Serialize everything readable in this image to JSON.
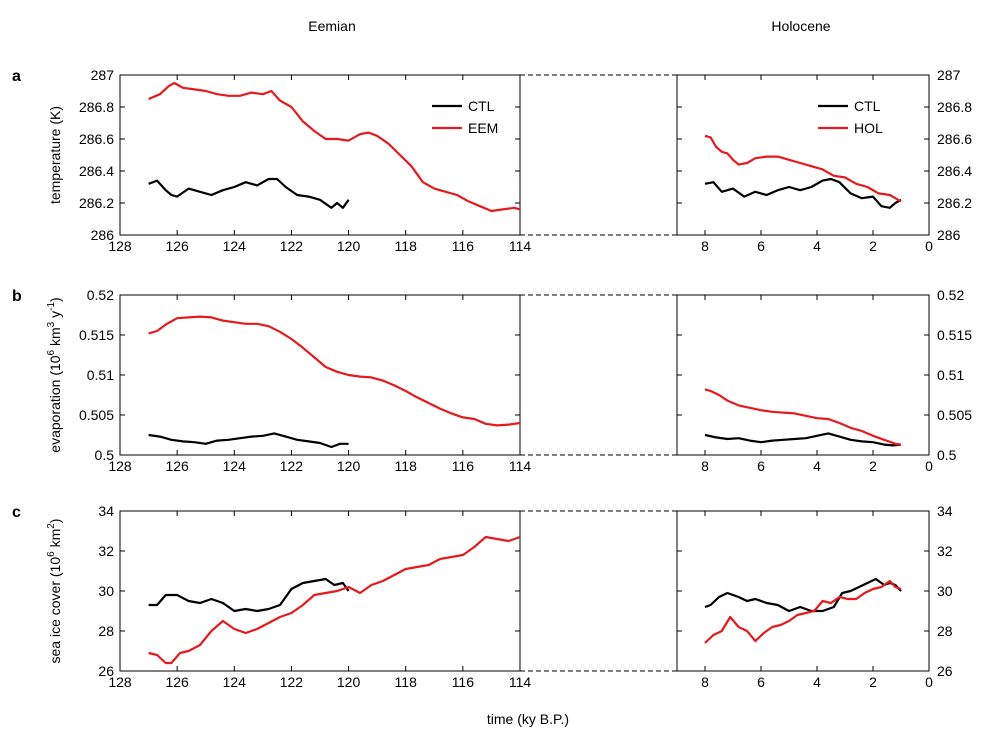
{
  "figure": {
    "period_left": "Eemian",
    "period_right": "Holocene",
    "xlabel": "time (ky B.P.)"
  },
  "chart_data": [
    {
      "type": "line",
      "panel_label": "a",
      "ylabel": "temperature (K)",
      "ylim": [
        286,
        287
      ],
      "yticks": [
        "286",
        "286.2",
        "286.4",
        "286.6",
        "286.8",
        "287"
      ],
      "eemian": {
        "xlim": [
          128,
          114
        ],
        "xticks": [
          "128",
          "126",
          "124",
          "122",
          "120",
          "118",
          "116",
          "114"
        ],
        "series": [
          {
            "name": "CTL",
            "color": "#000000",
            "x": [
              127,
              126.7,
              126.4,
              126.2,
              126,
              125.6,
              125.2,
              124.8,
              124.4,
              124,
              123.6,
              123.2,
              122.8,
              122.5,
              122.2,
              121.8,
              121.4,
              121,
              120.6,
              120.4,
              120.2,
              120
            ],
            "y": [
              286.32,
              286.34,
              286.28,
              286.25,
              286.24,
              286.29,
              286.27,
              286.25,
              286.28,
              286.3,
              286.33,
              286.31,
              286.35,
              286.35,
              286.3,
              286.25,
              286.24,
              286.22,
              286.17,
              286.2,
              286.17,
              286.22
            ]
          },
          {
            "name": "EEM",
            "color": "#e41a1c",
            "x": [
              127,
              126.6,
              126.3,
              126.1,
              125.8,
              125.4,
              125,
              124.6,
              124.2,
              123.8,
              123.4,
              123,
              122.7,
              122.4,
              122,
              121.6,
              121.2,
              120.8,
              120.4,
              120,
              119.6,
              119.3,
              119,
              118.6,
              118.2,
              117.8,
              117.4,
              117,
              116.6,
              116.2,
              115.8,
              115.4,
              115,
              114.6,
              114.2,
              114
            ],
            "y": [
              286.85,
              286.88,
              286.93,
              286.95,
              286.92,
              286.91,
              286.9,
              286.88,
              286.87,
              286.87,
              286.89,
              286.88,
              286.9,
              286.84,
              286.8,
              286.71,
              286.65,
              286.6,
              286.6,
              286.59,
              286.63,
              286.64,
              286.62,
              286.57,
              286.5,
              286.43,
              286.33,
              286.29,
              286.27,
              286.25,
              286.21,
              286.18,
              286.15,
              286.16,
              286.17,
              286.16
            ]
          }
        ]
      },
      "holocene": {
        "xlim": [
          9,
          0
        ],
        "xticks": [
          "8",
          "6",
          "4",
          "2",
          "0"
        ],
        "series": [
          {
            "name": "CTL",
            "color": "#000000",
            "x": [
              8,
              7.7,
              7.4,
              7,
              6.6,
              6.2,
              5.8,
              5.4,
              5,
              4.6,
              4.2,
              3.8,
              3.5,
              3.2,
              2.8,
              2.4,
              2,
              1.7,
              1.4,
              1.2,
              1
            ],
            "y": [
              286.32,
              286.33,
              286.27,
              286.29,
              286.24,
              286.27,
              286.25,
              286.28,
              286.3,
              286.28,
              286.3,
              286.34,
              286.35,
              286.33,
              286.26,
              286.23,
              286.24,
              286.18,
              286.17,
              286.2,
              286.22
            ]
          },
          {
            "name": "HOL",
            "color": "#e41a1c",
            "x": [
              8,
              7.8,
              7.6,
              7.4,
              7.2,
              7,
              6.8,
              6.5,
              6.2,
              5.8,
              5.4,
              5,
              4.6,
              4.2,
              3.8,
              3.4,
              3,
              2.6,
              2.2,
              1.8,
              1.4,
              1.2,
              1
            ],
            "y": [
              286.62,
              286.61,
              286.55,
              286.52,
              286.51,
              286.47,
              286.44,
              286.45,
              286.48,
              286.49,
              286.49,
              286.47,
              286.45,
              286.43,
              286.41,
              286.37,
              286.36,
              286.32,
              286.3,
              286.26,
              286.25,
              286.23,
              286.21
            ]
          }
        ]
      },
      "legend": {
        "placement": "top-center",
        "left": [
          "CTL",
          "EEM"
        ],
        "right": [
          "CTL",
          "HOL"
        ]
      }
    },
    {
      "type": "line",
      "panel_label": "b",
      "ylabel_parts": [
        "evaporation (10",
        "6",
        " km",
        "3",
        " y",
        "-1",
        ")"
      ],
      "ylim": [
        0.5,
        0.52
      ],
      "yticks": [
        "0.5",
        "0.505",
        "0.51",
        "0.515",
        "0.52"
      ],
      "eemian": {
        "xlim": [
          128,
          114
        ],
        "xticks": [
          "128",
          "126",
          "124",
          "122",
          "120",
          "118",
          "116",
          "114"
        ],
        "series": [
          {
            "name": "CTL",
            "color": "#000000",
            "x": [
              127,
              126.6,
              126.2,
              125.8,
              125.4,
              125,
              124.6,
              124.2,
              123.8,
              123.4,
              123,
              122.6,
              122.2,
              121.8,
              121.4,
              121,
              120.6,
              120.3,
              120
            ],
            "y": [
              0.5025,
              0.5023,
              0.5019,
              0.5017,
              0.5016,
              0.5014,
              0.5018,
              0.5019,
              0.5021,
              0.5023,
              0.5024,
              0.5027,
              0.5023,
              0.5019,
              0.5017,
              0.5015,
              0.501,
              0.5014,
              0.5014
            ]
          },
          {
            "name": "EEM",
            "color": "#e41a1c",
            "x": [
              127,
              126.7,
              126.4,
              126,
              125.6,
              125.2,
              124.8,
              124.4,
              124,
              123.6,
              123.2,
              122.8,
              122.4,
              122,
              121.6,
              121.2,
              120.8,
              120.4,
              120,
              119.6,
              119.2,
              118.8,
              118.4,
              118,
              117.6,
              117.2,
              116.8,
              116.4,
              116,
              115.6,
              115.2,
              114.8,
              114.4,
              114
            ],
            "y": [
              0.5152,
              0.5155,
              0.5163,
              0.5171,
              0.5172,
              0.5173,
              0.5172,
              0.5168,
              0.5166,
              0.5164,
              0.5164,
              0.5161,
              0.5154,
              0.5145,
              0.5134,
              0.5122,
              0.511,
              0.5104,
              0.51,
              0.5098,
              0.5097,
              0.5093,
              0.5087,
              0.508,
              0.5072,
              0.5065,
              0.5058,
              0.5052,
              0.5047,
              0.5045,
              0.5039,
              0.5037,
              0.5038,
              0.504
            ]
          }
        ]
      },
      "holocene": {
        "xlim": [
          9,
          0
        ],
        "xticks": [
          "8",
          "6",
          "4",
          "2",
          "0"
        ],
        "series": [
          {
            "name": "CTL",
            "color": "#000000",
            "x": [
              8,
              7.6,
              7.2,
              6.8,
              6.4,
              6,
              5.6,
              5.2,
              4.8,
              4.4,
              4,
              3.6,
              3.2,
              2.8,
              2.4,
              2,
              1.6,
              1.3,
              1
            ],
            "y": [
              0.5025,
              0.5022,
              0.502,
              0.5021,
              0.5018,
              0.5016,
              0.5018,
              0.5019,
              0.502,
              0.5021,
              0.5024,
              0.5027,
              0.5023,
              0.5019,
              0.5017,
              0.5016,
              0.5013,
              0.5012,
              0.5013
            ]
          },
          {
            "name": "HOL",
            "color": "#e41a1c",
            "x": [
              8,
              7.8,
              7.5,
              7.2,
              6.8,
              6.4,
              6,
              5.6,
              5.2,
              4.8,
              4.4,
              4,
              3.6,
              3.2,
              2.8,
              2.4,
              2,
              1.6,
              1.2,
              1
            ],
            "y": [
              0.5082,
              0.508,
              0.5075,
              0.5068,
              0.5062,
              0.5059,
              0.5056,
              0.5054,
              0.5053,
              0.5052,
              0.5049,
              0.5046,
              0.5045,
              0.504,
              0.5034,
              0.503,
              0.5024,
              0.5019,
              0.5014,
              0.5013
            ]
          }
        ]
      }
    },
    {
      "type": "line",
      "panel_label": "c",
      "ylabel_parts": [
        "sea ice cover (10",
        "6",
        " km",
        "2",
        ")"
      ],
      "ylim": [
        26,
        34
      ],
      "yticks": [
        "26",
        "28",
        "30",
        "32",
        "34"
      ],
      "eemian": {
        "xlim": [
          128,
          114
        ],
        "xticks": [
          "128",
          "126",
          "124",
          "122",
          "120",
          "118",
          "116",
          "114"
        ],
        "series": [
          {
            "name": "CTL",
            "color": "#000000",
            "x": [
              127,
              126.7,
              126.4,
              126,
              125.6,
              125.2,
              124.8,
              124.4,
              124,
              123.6,
              123.2,
              122.8,
              122.4,
              122,
              121.6,
              121.2,
              120.8,
              120.5,
              120.2,
              120
            ],
            "y": [
              29.3,
              29.3,
              29.8,
              29.8,
              29.5,
              29.4,
              29.6,
              29.4,
              29.0,
              29.1,
              29.0,
              29.1,
              29.3,
              30.1,
              30.4,
              30.5,
              30.6,
              30.3,
              30.4,
              30.0
            ]
          },
          {
            "name": "EEM",
            "color": "#e41a1c",
            "x": [
              127,
              126.7,
              126.4,
              126.2,
              125.9,
              125.6,
              125.2,
              124.8,
              124.4,
              124,
              123.6,
              123.2,
              122.8,
              122.4,
              122,
              121.6,
              121.2,
              120.8,
              120.4,
              120,
              119.6,
              119.2,
              118.8,
              118.4,
              118,
              117.6,
              117.2,
              116.8,
              116.4,
              116,
              115.6,
              115.2,
              114.8,
              114.4,
              114
            ],
            "y": [
              26.9,
              26.8,
              26.4,
              26.4,
              26.9,
              27.0,
              27.3,
              28.0,
              28.5,
              28.1,
              27.9,
              28.1,
              28.4,
              28.7,
              28.9,
              29.3,
              29.8,
              29.9,
              30.0,
              30.2,
              29.9,
              30.3,
              30.5,
              30.8,
              31.1,
              31.2,
              31.3,
              31.6,
              31.7,
              31.8,
              32.2,
              32.7,
              32.6,
              32.5,
              32.7
            ]
          }
        ]
      },
      "holocene": {
        "xlim": [
          9,
          0
        ],
        "xticks": [
          "8",
          "6",
          "4",
          "2",
          "0"
        ],
        "series": [
          {
            "name": "CTL",
            "color": "#000000",
            "x": [
              8,
              7.8,
              7.5,
              7.2,
              6.8,
              6.5,
              6.2,
              5.8,
              5.4,
              5,
              4.6,
              4.2,
              3.8,
              3.4,
              3.1,
              2.8,
              2.5,
              2.2,
              1.9,
              1.6,
              1.4,
              1.2,
              1
            ],
            "y": [
              29.2,
              29.3,
              29.7,
              29.9,
              29.7,
              29.5,
              29.6,
              29.4,
              29.3,
              29.0,
              29.2,
              29.0,
              29.0,
              29.2,
              29.9,
              30.0,
              30.2,
              30.4,
              30.6,
              30.3,
              30.4,
              30.3,
              30.0
            ]
          },
          {
            "name": "HOL",
            "color": "#e41a1c",
            "x": [
              8,
              7.7,
              7.4,
              7.1,
              6.8,
              6.5,
              6.2,
              5.9,
              5.6,
              5.3,
              5,
              4.7,
              4.4,
              4.1,
              3.8,
              3.5,
              3.2,
              2.9,
              2.6,
              2.3,
              2,
              1.7,
              1.4,
              1.2,
              1
            ],
            "y": [
              27.4,
              27.8,
              28.0,
              28.7,
              28.2,
              28.0,
              27.5,
              27.9,
              28.2,
              28.3,
              28.5,
              28.8,
              28.9,
              29.0,
              29.5,
              29.4,
              29.7,
              29.6,
              29.6,
              29.9,
              30.1,
              30.2,
              30.5,
              30.2,
              30.1
            ]
          }
        ]
      }
    }
  ]
}
